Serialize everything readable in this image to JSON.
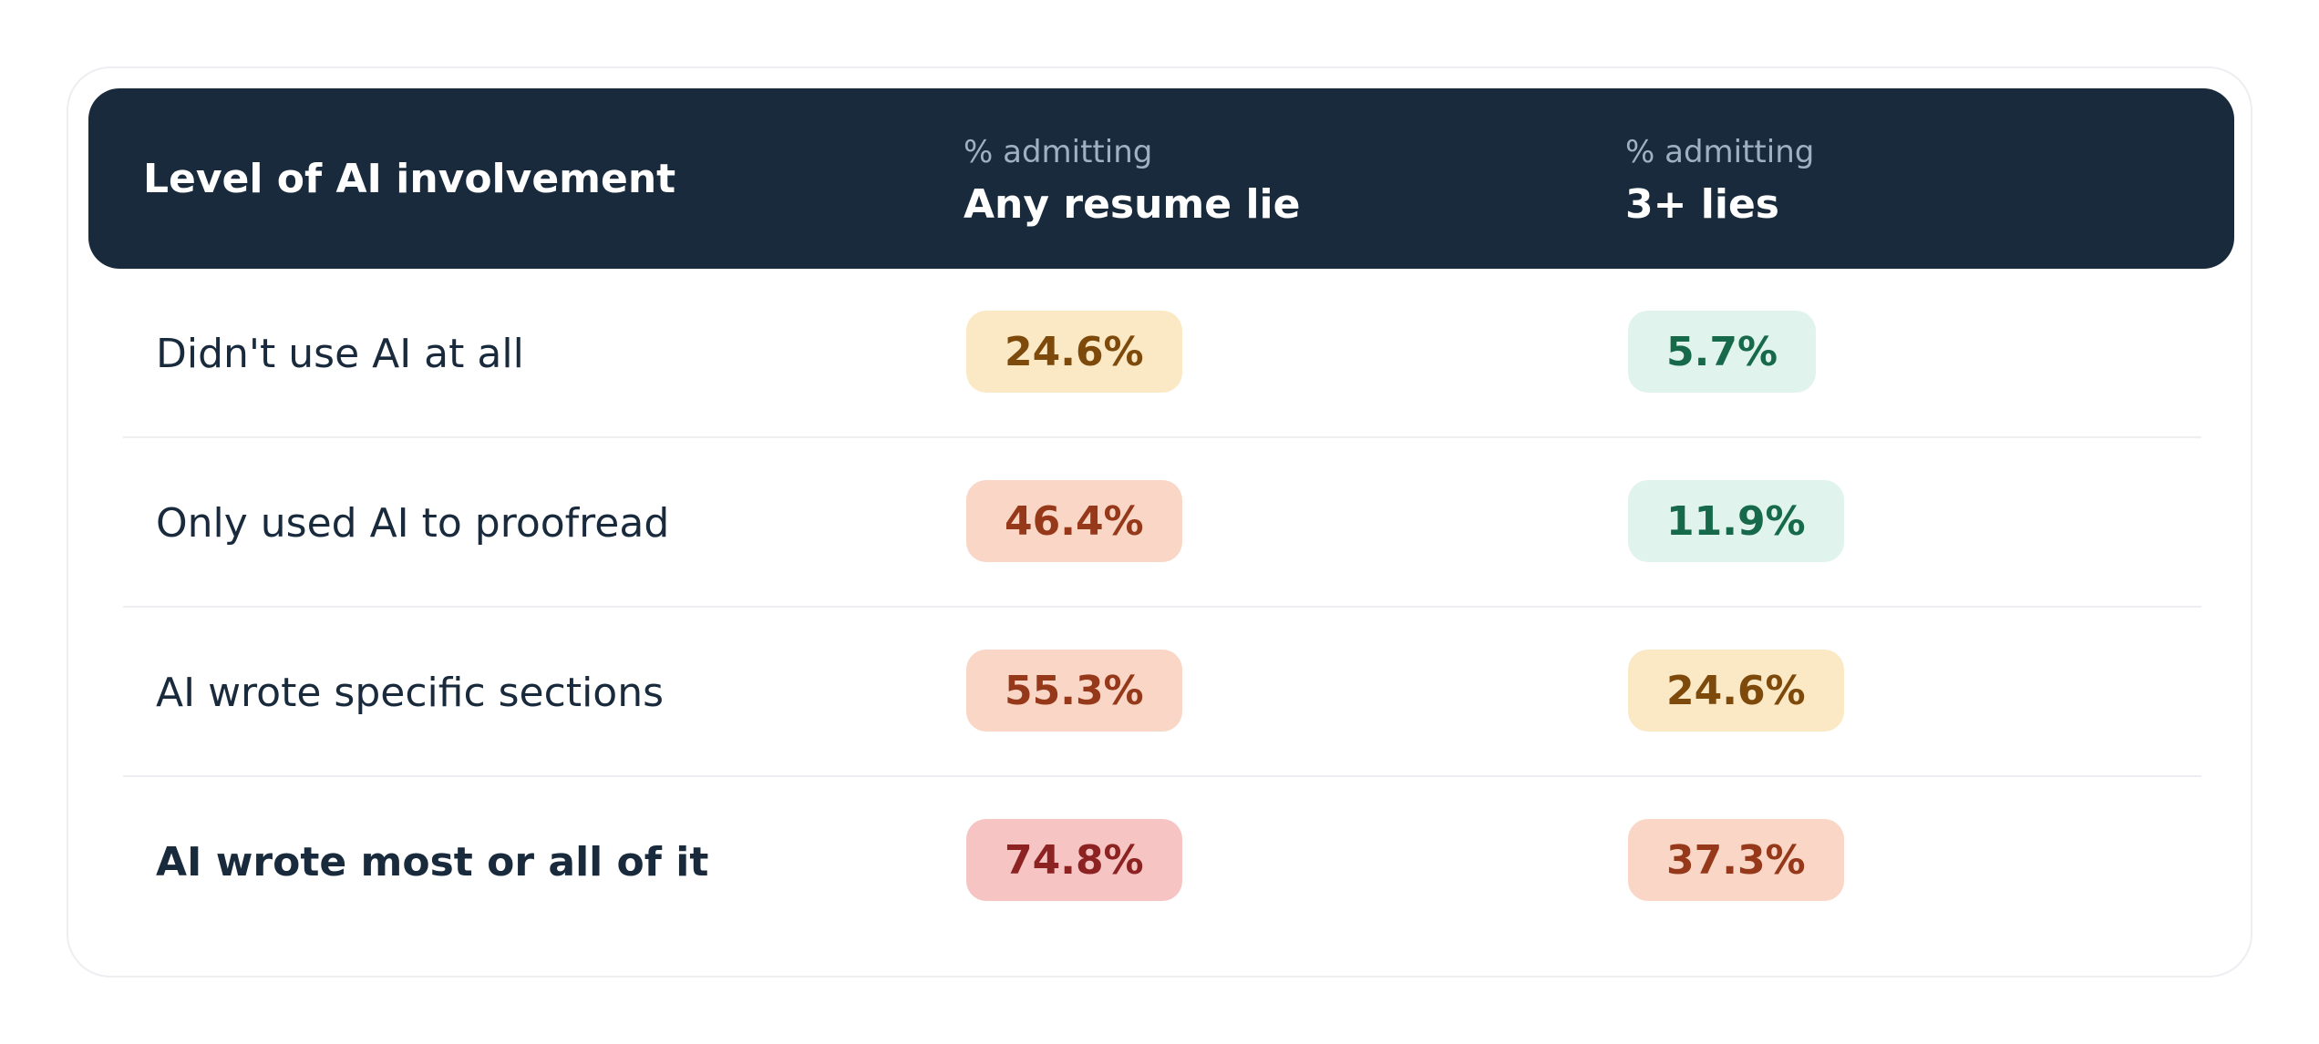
{
  "chart_data": {
    "type": "table",
    "header": {
      "row_label": "Level of AI involvement",
      "columns": [
        {
          "sub": "% admitting",
          "title": "Any resume lie"
        },
        {
          "sub": "% admitting",
          "title": "3+ lies"
        }
      ]
    },
    "rows": [
      {
        "label": "Didn't use AI at all",
        "values": [
          "24.6%",
          "5.7%"
        ],
        "levels": [
          "moderate",
          "low"
        ]
      },
      {
        "label": "Only used AI to proofread",
        "values": [
          "46.4%",
          "11.9%"
        ],
        "levels": [
          "high",
          "low"
        ]
      },
      {
        "label": "AI wrote specific sections",
        "values": [
          "55.3%",
          "24.6%"
        ],
        "levels": [
          "high",
          "moderate"
        ]
      },
      {
        "label": "AI wrote most or all of it",
        "values": [
          "74.8%",
          "37.3%"
        ],
        "levels": [
          "very-high",
          "high"
        ],
        "emphasis": true
      }
    ]
  },
  "colors": {
    "header_bg": "#182a3c",
    "header_sub": "#9fb0c3",
    "text": "#182a3c",
    "low": {
      "bg": "#e0f3ec",
      "fg": "#17694b"
    },
    "moderate": {
      "bg": "#fbe9c6",
      "fg": "#7e4a0c"
    },
    "high": {
      "bg": "#f9d6c5",
      "fg": "#96391b"
    },
    "very-high": {
      "bg": "#f6c5c3",
      "fg": "#8c2222"
    }
  }
}
